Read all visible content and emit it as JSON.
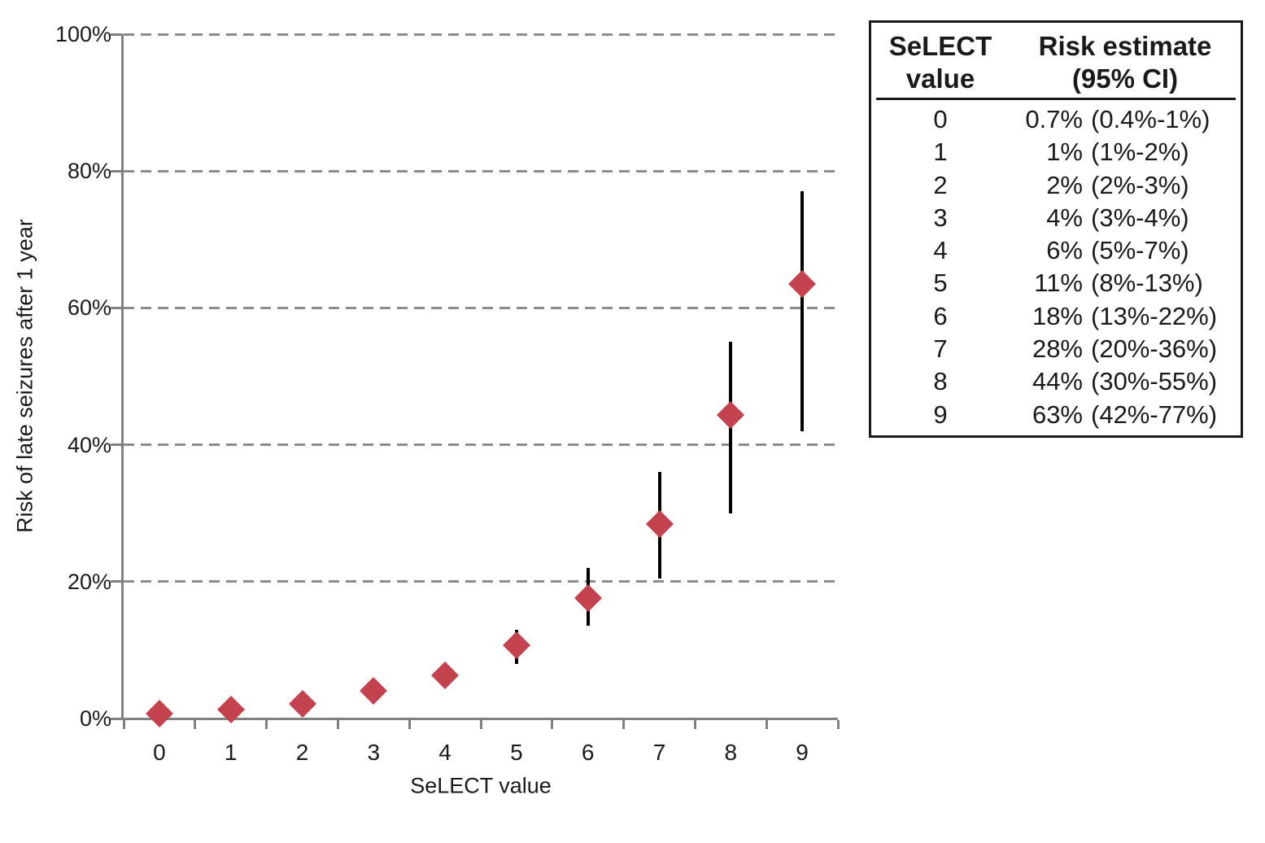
{
  "colors": {
    "marker": "#C4424E",
    "axis": "#808080",
    "gridline": "#8C8C8C",
    "error_bar": "#000000",
    "text": "#1A1A1A",
    "table_border": "#1A1A1A",
    "background": "#FFFFFF"
  },
  "chart_data": {
    "type": "scatter",
    "title": "",
    "xlabel": "SeLECT value",
    "ylabel": "Risk of late seizures after 1 year",
    "x": [
      0,
      1,
      2,
      3,
      4,
      5,
      6,
      7,
      8,
      9
    ],
    "x_tick_labels": [
      "0",
      "1",
      "2",
      "3",
      "4",
      "5",
      "6",
      "7",
      "8",
      "9"
    ],
    "series": [
      {
        "name": "Risk of late seizures after 1 year",
        "marker": "diamond",
        "values": [
          0.7,
          1.3,
          2.1,
          4,
          6.3,
          10.7,
          17.6,
          28.4,
          44.4,
          63.5
        ],
        "ci_low": [
          0.4,
          1,
          2,
          3,
          5,
          8,
          13.5,
          20.5,
          30,
          42
        ],
        "ci_high": [
          1,
          2,
          3,
          4.5,
          7,
          13,
          22,
          36,
          55,
          77
        ]
      }
    ],
    "ylim": [
      0,
      100
    ],
    "yticks": [
      0,
      20,
      40,
      60,
      80,
      100
    ],
    "ytick_labels": [
      "0%",
      "20%",
      "40%",
      "60%",
      "80%",
      "100%"
    ],
    "grid": "horizontal-dashed",
    "legend_position": "none"
  },
  "table": {
    "headers": [
      {
        "line1": "SeLECT",
        "line2": "value"
      },
      {
        "line1": "Risk estimate",
        "line2": "(95% CI)"
      }
    ],
    "rows": [
      {
        "value": "0",
        "estimate": "0.7%",
        "ci": "(0.4%-1%)"
      },
      {
        "value": "1",
        "estimate": "1%",
        "ci": "(1%-2%)"
      },
      {
        "value": "2",
        "estimate": "2%",
        "ci": "(2%-3%)"
      },
      {
        "value": "3",
        "estimate": "4%",
        "ci": "(3%-4%)"
      },
      {
        "value": "4",
        "estimate": "6%",
        "ci": "(5%-7%)"
      },
      {
        "value": "5",
        "estimate": "11%",
        "ci": "(8%-13%)"
      },
      {
        "value": "6",
        "estimate": "18%",
        "ci": "(13%-22%)"
      },
      {
        "value": "7",
        "estimate": "28%",
        "ci": "(20%-36%)"
      },
      {
        "value": "8",
        "estimate": "44%",
        "ci": "(30%-55%)"
      },
      {
        "value": "9",
        "estimate": "63%",
        "ci": "(42%-77%)"
      }
    ]
  }
}
